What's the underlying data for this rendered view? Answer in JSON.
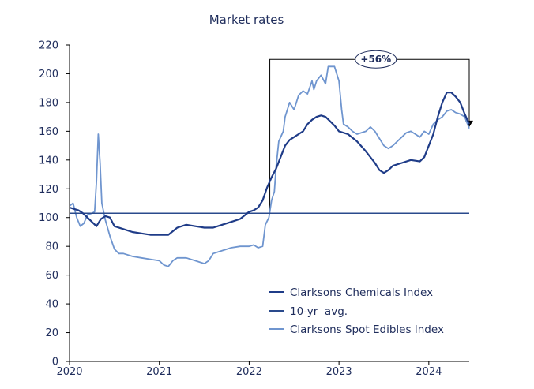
{
  "chart_data": {
    "type": "line",
    "title": "Market rates",
    "xlabel": "",
    "ylabel": "",
    "ylim": [
      0,
      220
    ],
    "yticks": [
      0,
      20,
      40,
      60,
      80,
      100,
      120,
      140,
      160,
      180,
      200,
      220
    ],
    "xlim": [
      2020,
      2024.45
    ],
    "xticks": [
      2020,
      2021,
      2022,
      2023,
      2024
    ],
    "grid": false,
    "legend_position": "bottom-right",
    "annotation": {
      "label": "+56%",
      "x_start": 2022.23,
      "x_end": 2024.45,
      "y_top": 210
    },
    "colors": {
      "chemicals": "#1f3c88",
      "avg": "#2a4a8c",
      "edibles": "#6f95cf",
      "text": "#1f2d5c"
    },
    "series": [
      {
        "name": "Clarksons Chemicals Index",
        "points": [
          [
            2020.0,
            107
          ],
          [
            2020.05,
            106
          ],
          [
            2020.1,
            105
          ],
          [
            2020.15,
            103
          ],
          [
            2020.2,
            100
          ],
          [
            2020.25,
            97
          ],
          [
            2020.3,
            94
          ],
          [
            2020.35,
            99
          ],
          [
            2020.4,
            101
          ],
          [
            2020.45,
            100
          ],
          [
            2020.5,
            94
          ],
          [
            2020.6,
            92
          ],
          [
            2020.7,
            90
          ],
          [
            2020.8,
            89
          ],
          [
            2020.9,
            88
          ],
          [
            2021.0,
            88
          ],
          [
            2021.1,
            88
          ],
          [
            2021.2,
            93
          ],
          [
            2021.3,
            95
          ],
          [
            2021.4,
            94
          ],
          [
            2021.5,
            93
          ],
          [
            2021.6,
            93
          ],
          [
            2021.7,
            95
          ],
          [
            2021.8,
            97
          ],
          [
            2021.9,
            99
          ],
          [
            2022.0,
            104
          ],
          [
            2022.05,
            105
          ],
          [
            2022.1,
            107
          ],
          [
            2022.15,
            112
          ],
          [
            2022.2,
            121
          ],
          [
            2022.25,
            128
          ],
          [
            2022.3,
            134
          ],
          [
            2022.35,
            142
          ],
          [
            2022.4,
            150
          ],
          [
            2022.45,
            154
          ],
          [
            2022.5,
            156
          ],
          [
            2022.55,
            158
          ],
          [
            2022.6,
            160
          ],
          [
            2022.65,
            165
          ],
          [
            2022.7,
            168
          ],
          [
            2022.75,
            170
          ],
          [
            2022.8,
            171
          ],
          [
            2022.85,
            170
          ],
          [
            2022.9,
            167
          ],
          [
            2022.95,
            164
          ],
          [
            2023.0,
            160
          ],
          [
            2023.1,
            158
          ],
          [
            2023.2,
            153
          ],
          [
            2023.3,
            146
          ],
          [
            2023.4,
            138
          ],
          [
            2023.45,
            133
          ],
          [
            2023.5,
            131
          ],
          [
            2023.55,
            133
          ],
          [
            2023.6,
            136
          ],
          [
            2023.7,
            138
          ],
          [
            2023.8,
            140
          ],
          [
            2023.9,
            139
          ],
          [
            2023.95,
            142
          ],
          [
            2024.0,
            150
          ],
          [
            2024.05,
            158
          ],
          [
            2024.1,
            170
          ],
          [
            2024.15,
            180
          ],
          [
            2024.2,
            187
          ],
          [
            2024.25,
            187
          ],
          [
            2024.3,
            184
          ],
          [
            2024.35,
            180
          ],
          [
            2024.4,
            172
          ],
          [
            2024.45,
            165
          ]
        ]
      },
      {
        "name": "10-yr  avg.",
        "points": [
          [
            2020.0,
            103
          ],
          [
            2024.45,
            103
          ]
        ]
      },
      {
        "name": "Clarksons Spot Edibles Index",
        "points": [
          [
            2020.0,
            108
          ],
          [
            2020.04,
            110
          ],
          [
            2020.08,
            100
          ],
          [
            2020.12,
            94
          ],
          [
            2020.16,
            96
          ],
          [
            2020.2,
            102
          ],
          [
            2020.25,
            103
          ],
          [
            2020.28,
            104
          ],
          [
            2020.3,
            125
          ],
          [
            2020.32,
            158
          ],
          [
            2020.34,
            138
          ],
          [
            2020.36,
            110
          ],
          [
            2020.4,
            98
          ],
          [
            2020.45,
            87
          ],
          [
            2020.5,
            78
          ],
          [
            2020.55,
            75
          ],
          [
            2020.6,
            75
          ],
          [
            2020.7,
            73
          ],
          [
            2020.8,
            72
          ],
          [
            2020.9,
            71
          ],
          [
            2021.0,
            70
          ],
          [
            2021.05,
            67
          ],
          [
            2021.1,
            66
          ],
          [
            2021.15,
            70
          ],
          [
            2021.2,
            72
          ],
          [
            2021.3,
            72
          ],
          [
            2021.4,
            70
          ],
          [
            2021.5,
            68
          ],
          [
            2021.55,
            70
          ],
          [
            2021.6,
            75
          ],
          [
            2021.7,
            77
          ],
          [
            2021.8,
            79
          ],
          [
            2021.9,
            80
          ],
          [
            2022.0,
            80
          ],
          [
            2022.05,
            81
          ],
          [
            2022.1,
            79
          ],
          [
            2022.15,
            80
          ],
          [
            2022.18,
            95
          ],
          [
            2022.22,
            100
          ],
          [
            2022.25,
            112
          ],
          [
            2022.28,
            118
          ],
          [
            2022.3,
            135
          ],
          [
            2022.33,
            153
          ],
          [
            2022.38,
            160
          ],
          [
            2022.4,
            170
          ],
          [
            2022.45,
            180
          ],
          [
            2022.5,
            175
          ],
          [
            2022.55,
            185
          ],
          [
            2022.6,
            188
          ],
          [
            2022.65,
            186
          ],
          [
            2022.7,
            195
          ],
          [
            2022.72,
            189
          ],
          [
            2022.75,
            195
          ],
          [
            2022.8,
            199
          ],
          [
            2022.85,
            193
          ],
          [
            2022.88,
            205
          ],
          [
            2022.95,
            205
          ],
          [
            2023.0,
            195
          ],
          [
            2023.03,
            175
          ],
          [
            2023.05,
            165
          ],
          [
            2023.1,
            163
          ],
          [
            2023.15,
            160
          ],
          [
            2023.2,
            158
          ],
          [
            2023.3,
            160
          ],
          [
            2023.35,
            163
          ],
          [
            2023.4,
            160
          ],
          [
            2023.45,
            155
          ],
          [
            2023.5,
            150
          ],
          [
            2023.55,
            148
          ],
          [
            2023.6,
            150
          ],
          [
            2023.7,
            156
          ],
          [
            2023.75,
            159
          ],
          [
            2023.8,
            160
          ],
          [
            2023.85,
            158
          ],
          [
            2023.9,
            156
          ],
          [
            2023.95,
            160
          ],
          [
            2024.0,
            158
          ],
          [
            2024.05,
            165
          ],
          [
            2024.1,
            168
          ],
          [
            2024.15,
            170
          ],
          [
            2024.2,
            174
          ],
          [
            2024.25,
            175
          ],
          [
            2024.3,
            173
          ],
          [
            2024.35,
            172
          ],
          [
            2024.4,
            170
          ],
          [
            2024.45,
            162
          ]
        ]
      }
    ]
  }
}
